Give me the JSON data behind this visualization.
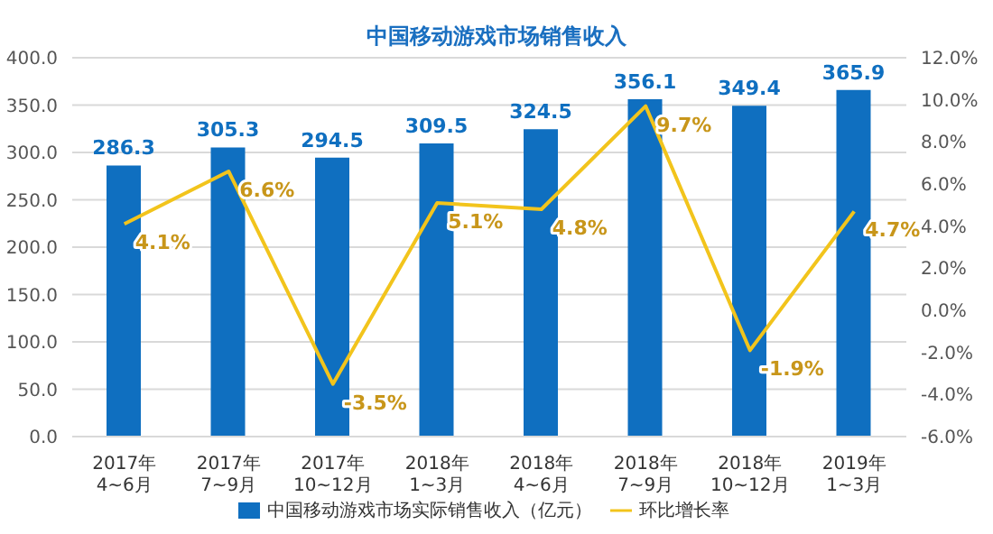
{
  "chart_data": {
    "type": "bar",
    "title": "中国移动游戏市场销售收入",
    "categories": [
      "2017年4~6月",
      "2017年7~9月",
      "2017年10~12月",
      "2018年1~3月",
      "2018年4~6月",
      "2018年7~9月",
      "2018年10~12月",
      "2019年1~3月"
    ],
    "series": [
      {
        "name": "中国移动游戏市场实际销售收入（亿元）",
        "color": "#0f6fc0",
        "values": [
          286.3,
          305.3,
          294.5,
          309.5,
          324.5,
          356.1,
          349.4,
          365.9
        ]
      },
      {
        "name": "环比增长率",
        "type": "line",
        "axis": "y2",
        "color": "#f2c41c",
        "values": [
          4.1,
          6.6,
          -3.5,
          5.1,
          4.8,
          9.7,
          -1.9,
          4.7
        ],
        "value_labels": [
          "4.1%",
          "6.6%",
          "-3.5%",
          "5.1%",
          "4.8%",
          "9.7%",
          "-1.9%",
          "4.7%"
        ]
      }
    ],
    "data_labels": true,
    "ylim": [
      0,
      400
    ],
    "yticks": [
      {
        "value": 0,
        "label": "0.0"
      },
      {
        "value": 50,
        "label": "50.0"
      },
      {
        "value": 100,
        "label": "100.0"
      },
      {
        "value": 150,
        "label": "150.0"
      },
      {
        "value": 200,
        "label": "200.0"
      },
      {
        "value": 250,
        "label": "250.0"
      },
      {
        "value": 300,
        "label": "300.0"
      },
      {
        "value": 350,
        "label": "350.0"
      },
      {
        "value": 400,
        "label": "400.0"
      }
    ],
    "y2lim": [
      -6,
      12
    ],
    "y2ticks": [
      {
        "value": -6,
        "label": "-6.0%"
      },
      {
        "value": -4,
        "label": "-4.0%"
      },
      {
        "value": -2,
        "label": "-2.0%"
      },
      {
        "value": 0,
        "label": "0.0%"
      },
      {
        "value": 2,
        "label": "2.0%"
      },
      {
        "value": 4,
        "label": "4.0%"
      },
      {
        "value": 6,
        "label": "6.0%"
      },
      {
        "value": 8,
        "label": "8.0%"
      },
      {
        "value": 10,
        "label": "10.0%"
      },
      {
        "value": 12,
        "label": "12.0%"
      }
    ],
    "grid": "y",
    "legend": "bottom"
  }
}
